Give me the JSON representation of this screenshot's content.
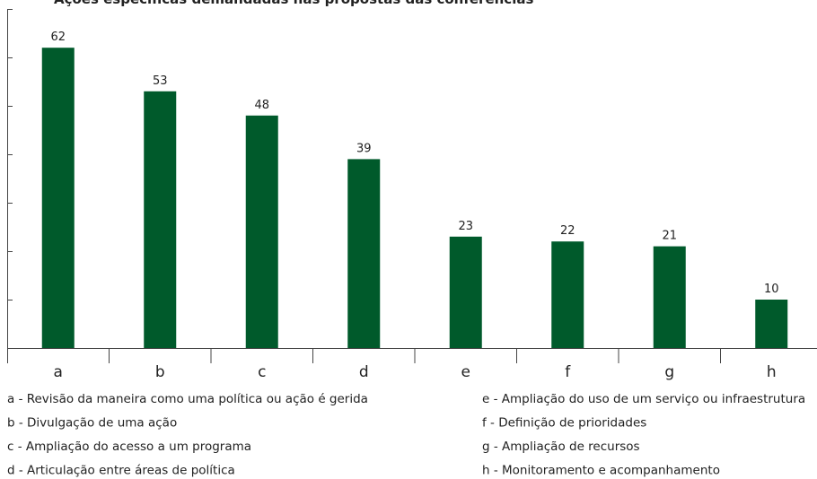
{
  "chart_data": {
    "type": "bar",
    "title": "Ações específicas demandadas nas propostas das conferências",
    "categories": [
      "a",
      "b",
      "c",
      "d",
      "e",
      "f",
      "g",
      "h"
    ],
    "values": [
      62,
      53,
      48,
      39,
      23,
      22,
      21,
      10
    ],
    "color": "#005a2b",
    "ylim": [
      0,
      70
    ],
    "yticks": [
      0,
      10,
      20,
      30,
      40,
      50,
      60,
      70
    ],
    "legend": [
      "a - Revisão da maneira como uma política ou ação é gerida",
      "b - Divulgação de uma ação",
      "c - Ampliação do acesso a um programa",
      "d - Articulação entre áreas de política",
      "e - Ampliação do uso de um serviço ou infraestrutura",
      "f - Definição de prioridades",
      "g - Ampliação de recursos",
      "h - Monitoramento e acompanhamento"
    ]
  }
}
